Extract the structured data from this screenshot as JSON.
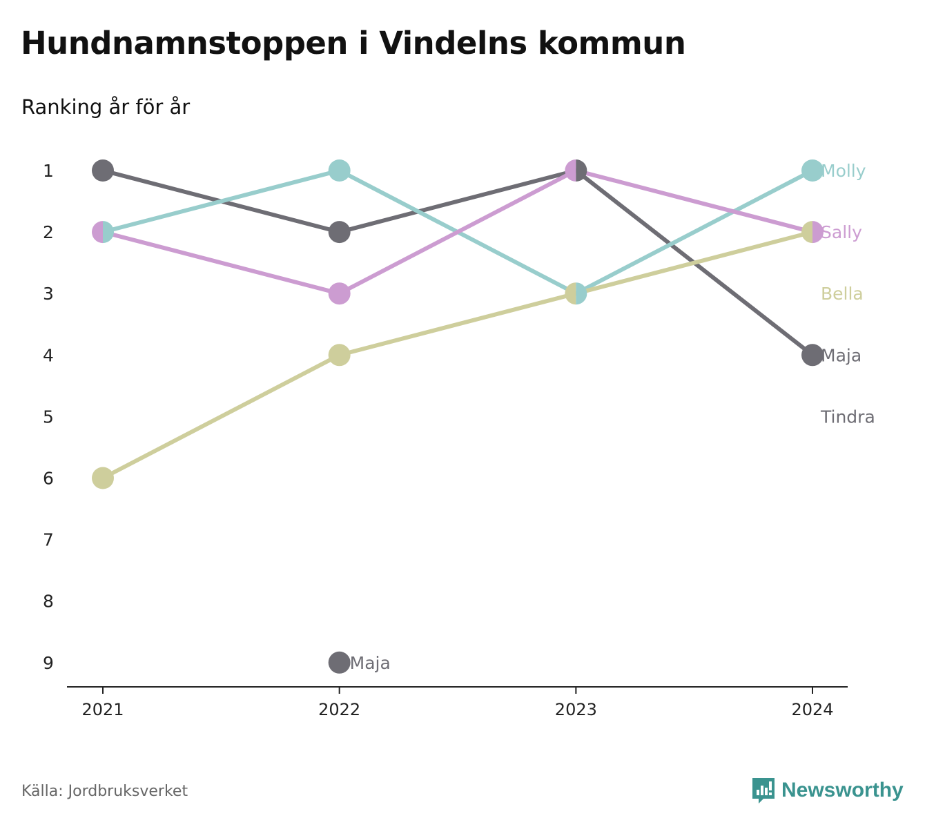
{
  "title": "Hundnamnstoppen i Vindelns kommun",
  "subtitle": "Ranking år för år",
  "source": "Källa: Jordbruksverket",
  "brand": {
    "name": "Newsworthy",
    "icon": "newsworthy-logo-icon",
    "color": "#3a938f"
  },
  "chart_data": {
    "type": "line",
    "chart_style": "bump",
    "x": [
      "2021",
      "2022",
      "2023",
      "2024"
    ],
    "ylim": [
      1,
      9
    ],
    "y_reversed": true,
    "y_ticks": [
      1,
      2,
      3,
      4,
      5,
      6,
      7,
      8,
      9
    ],
    "grid": false,
    "series": [
      {
        "name": "Maja",
        "color": "#6e6d74",
        "values": [
          1,
          2,
          1,
          4
        ]
      },
      {
        "name": "Molly",
        "color": "#98cdcc",
        "values": [
          2,
          1,
          3,
          1
        ]
      },
      {
        "name": "Sally",
        "color": "#cc9cd1",
        "values": [
          2,
          3,
          1,
          2
        ]
      },
      {
        "name": "Bella",
        "color": "#cece9c",
        "values": [
          6,
          4,
          3,
          2
        ]
      }
    ],
    "end_labels": [
      {
        "text": "Molly",
        "rank": 1,
        "color": "#98cdcc"
      },
      {
        "text": "Sally",
        "rank": 2,
        "color": "#cc9cd1"
      },
      {
        "text": "Bella",
        "rank": 3,
        "color": "#cece9c"
      },
      {
        "text": "Maja",
        "rank": 4,
        "color": "#6e6d74"
      },
      {
        "text": "Tindra",
        "rank": 5,
        "color": "#6e6d74"
      }
    ],
    "extra_points": [
      {
        "text": "Maja",
        "x": "2022",
        "y": 9,
        "color": "#6e6d74"
      }
    ]
  }
}
